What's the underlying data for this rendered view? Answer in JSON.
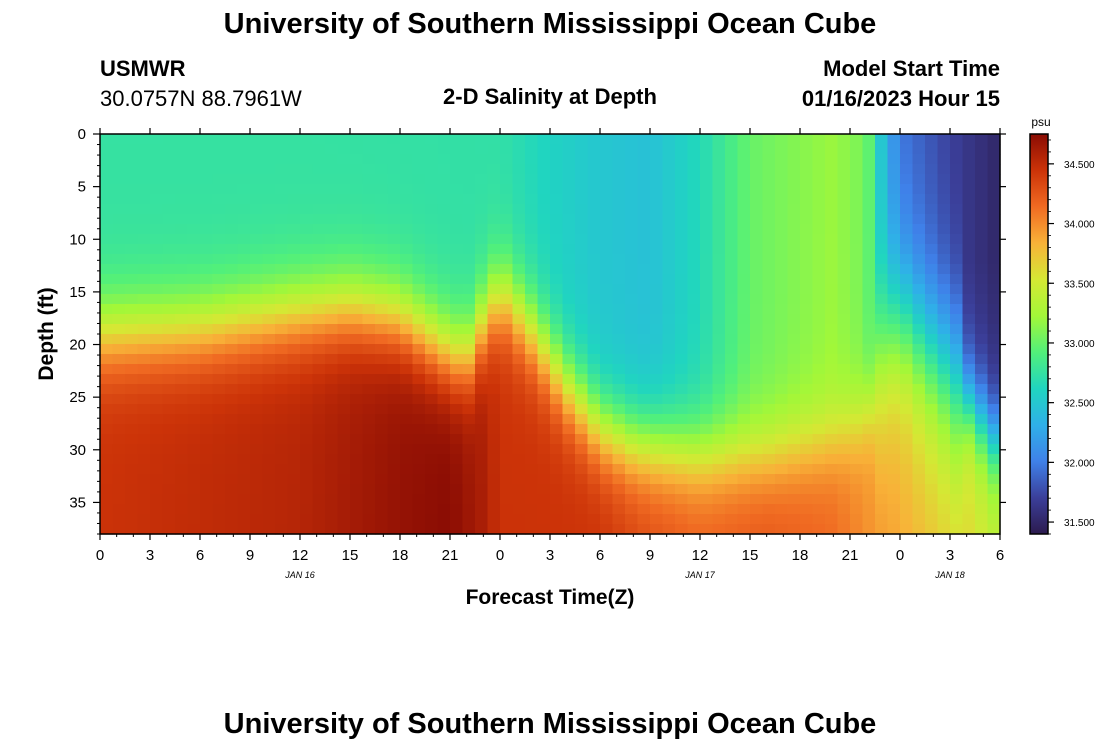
{
  "header": {
    "title": "University of Southern Mississippi Ocean Cube",
    "station": "USMWR",
    "coords": "30.0757N  88.7961W",
    "plot_title": "2-D Salinity at Depth",
    "model_label": "Model Start Time",
    "model_time": "01/16/2023 Hour 15"
  },
  "footer": {
    "title": "University of Southern Mississippi Ocean Cube"
  },
  "colors": {
    "palette": [
      "#2c1b4e",
      "#3b3f9a",
      "#3f81e9",
      "#2fb0e8",
      "#20d5c0",
      "#52f07a",
      "#a3f738",
      "#d5e834",
      "#f8b238",
      "#f06a22",
      "#cc3308",
      "#8a0c04"
    ]
  },
  "chart_data": {
    "type": "heatmap",
    "title": "2-D Salinity at Depth",
    "xlabel": "Forecast Time(Z)",
    "ylabel": "Depth (ft)",
    "x_tick_labels": [
      "0",
      "3",
      "6",
      "9",
      "12",
      "15",
      "18",
      "21",
      "0",
      "3",
      "6",
      "9",
      "12",
      "15",
      "18",
      "21",
      "0",
      "3",
      "6"
    ],
    "x_range_hours": [
      0,
      54
    ],
    "day_labels": [
      {
        "text": "JAN 16",
        "hour": 12
      },
      {
        "text": "JAN 17",
        "hour": 36
      },
      {
        "text": "JAN 18",
        "hour": 51
      }
    ],
    "y_ticks": [
      0,
      5,
      10,
      15,
      20,
      25,
      30,
      35
    ],
    "y_range": [
      0,
      38
    ],
    "y_inverted": true,
    "colorbar": {
      "unit": "psu",
      "range": [
        31.4,
        34.75
      ],
      "ticks": [
        31.5,
        32.0,
        32.5,
        33.0,
        33.5,
        34.0,
        34.5
      ],
      "tick_labels": [
        "31.500",
        "32.000",
        "32.500",
        "33.000",
        "33.500",
        "34.000",
        "34.500"
      ]
    },
    "surface_salinity_by_hour": [
      [
        0,
        32.75
      ],
      [
        12,
        32.75
      ],
      [
        24,
        32.73
      ],
      [
        27,
        32.6
      ],
      [
        30,
        32.5
      ],
      [
        33,
        32.45
      ],
      [
        36,
        32.65
      ],
      [
        39,
        33.0
      ],
      [
        44,
        33.2
      ],
      [
        46,
        33.05
      ],
      [
        47,
        32.4
      ],
      [
        48,
        31.95
      ],
      [
        51,
        31.7
      ],
      [
        54,
        31.5
      ]
    ],
    "halocline_depth_ft_by_hour": [
      [
        0,
        19
      ],
      [
        6,
        18.5
      ],
      [
        12,
        17
      ],
      [
        15,
        16.5
      ],
      [
        18,
        17.5
      ],
      [
        21,
        21
      ],
      [
        22,
        21.5
      ],
      [
        23,
        18
      ],
      [
        24,
        15
      ],
      [
        26,
        19
      ],
      [
        28,
        24
      ],
      [
        30,
        28
      ],
      [
        32,
        29.5
      ],
      [
        36,
        30.5
      ],
      [
        40,
        30.5
      ],
      [
        44,
        29
      ],
      [
        46,
        27
      ],
      [
        47,
        21
      ],
      [
        48,
        18
      ],
      [
        51,
        23
      ],
      [
        54,
        30
      ]
    ],
    "deep_salinity_by_hour": [
      [
        0,
        34.45
      ],
      [
        6,
        34.5
      ],
      [
        12,
        34.55
      ],
      [
        18,
        34.7
      ],
      [
        21,
        34.75
      ],
      [
        23,
        34.6
      ],
      [
        24,
        34.45
      ],
      [
        30,
        34.45
      ],
      [
        33,
        34.3
      ],
      [
        36,
        34.2
      ],
      [
        40,
        34.25
      ],
      [
        44,
        34.15
      ],
      [
        47,
        33.9
      ],
      [
        48,
        33.8
      ],
      [
        51,
        33.45
      ],
      [
        54,
        33.2
      ]
    ],
    "grid": false
  }
}
